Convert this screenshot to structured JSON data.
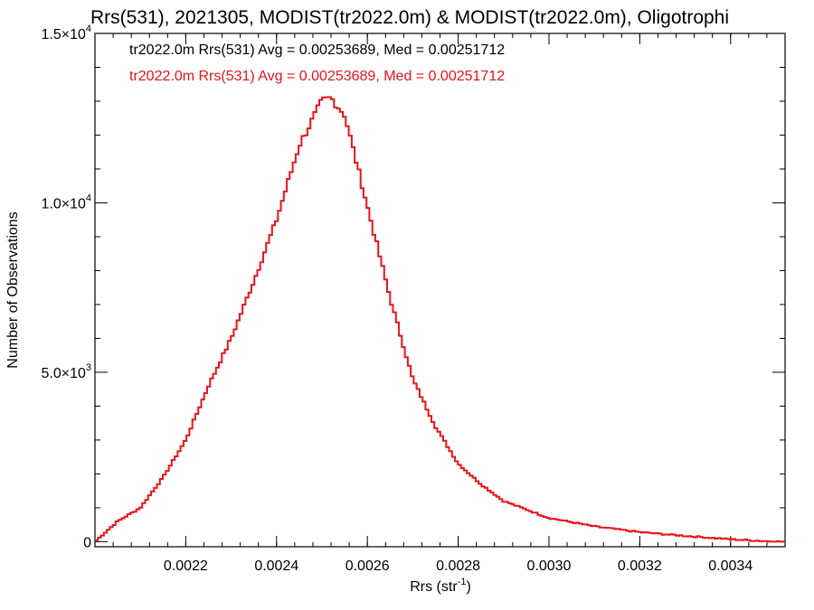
{
  "chart_data": {
    "type": "line",
    "title": "Rrs(531), 2021305, MODIST(tr2022.0m) & MODIST(tr2022.0m), Oligotrophi",
    "xlabel": "Rrs (str",
    "xlabel_sup": "-1",
    "xlabel_end": ")",
    "ylabel": "Number of Observations",
    "xlim": [
      0.002,
      0.00352
    ],
    "ylim": [
      -150,
      15000
    ],
    "x_ticks": [
      {
        "value": 0.0022,
        "label": "0.0022"
      },
      {
        "value": 0.0024,
        "label": "0.0024"
      },
      {
        "value": 0.0026,
        "label": "0.0026"
      },
      {
        "value": 0.0028,
        "label": "0.0028"
      },
      {
        "value": 0.003,
        "label": "0.0030"
      },
      {
        "value": 0.0032,
        "label": "0.0032"
      },
      {
        "value": 0.0034,
        "label": "0.0034"
      }
    ],
    "y_ticks": [
      {
        "value": 0,
        "label": "0",
        "sup": ""
      },
      {
        "value": 5000,
        "label": "5.0×10",
        "sup": "3"
      },
      {
        "value": 10000,
        "label": "1.0×10",
        "sup": "4"
      },
      {
        "value": 15000,
        "label": "1.5×10",
        "sup": "4"
      }
    ],
    "legend": [
      {
        "text": "tr2022.0m Rrs(531) Avg = 0.00253689, Med = 0.00251712",
        "color": "#000000"
      },
      {
        "text": "tr2022.0m Rrs(531) Avg = 0.00253689, Med = 0.00251712",
        "color": "#e8141b"
      }
    ],
    "series": [
      {
        "color": "#e8141b",
        "x": [
          0.002,
          0.00205,
          0.0021,
          0.00215,
          0.0022,
          0.00225,
          0.0023,
          0.00235,
          0.0024,
          0.00245,
          0.0025,
          0.00252,
          0.00255,
          0.0026,
          0.00265,
          0.0027,
          0.00275,
          0.0028,
          0.00285,
          0.0029,
          0.003,
          0.0031,
          0.0032,
          0.0033,
          0.0034,
          0.0035
        ],
        "y": [
          0,
          600,
          1000,
          1900,
          3000,
          4600,
          6000,
          7700,
          9500,
          11700,
          13000,
          13100,
          12600,
          9900,
          7200,
          4800,
          3400,
          2300,
          1700,
          1200,
          700,
          450,
          280,
          170,
          70,
          0
        ]
      }
    ]
  }
}
